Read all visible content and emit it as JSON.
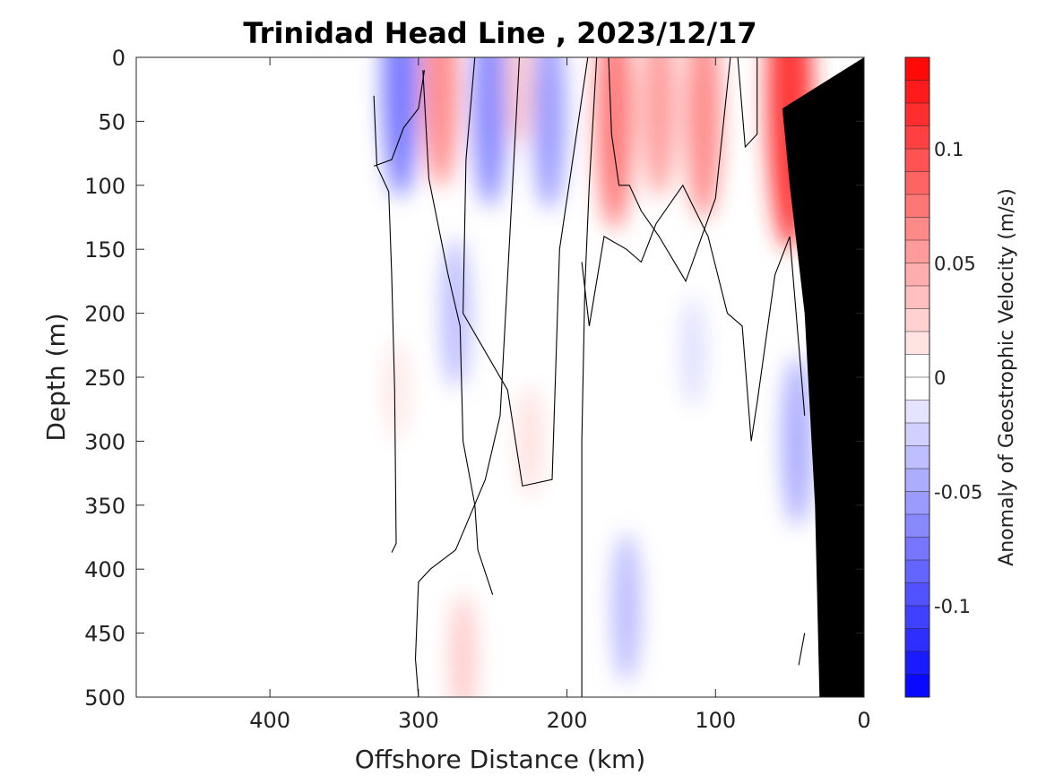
{
  "chart_data": {
    "type": "heatmap",
    "title": "Trinidad Head Line , 2023/12/17",
    "xlabel": "Offshore Distance (km)",
    "ylabel": "Depth (m)",
    "xlim": [
      490,
      0
    ],
    "ylim": [
      0,
      500
    ],
    "x_ticks": [
      400,
      300,
      200,
      100,
      0
    ],
    "x_tick_labels": [
      "400",
      "300",
      "200",
      "100",
      "0"
    ],
    "y_ticks": [
      0,
      50,
      100,
      150,
      200,
      250,
      300,
      350,
      400,
      450,
      500
    ],
    "y_tick_labels": [
      "0",
      "50",
      "100",
      "150",
      "200",
      "250",
      "300",
      "350",
      "400",
      "450",
      "500"
    ],
    "colorbar": {
      "label": "Anomaly of Geostrophic Velocity (m/s)",
      "range": [
        -0.14,
        0.14
      ],
      "step": 0.01,
      "ticks": [
        0.1,
        0.05,
        0,
        -0.05,
        -0.1
      ],
      "tick_labels": [
        "0.1",
        "0.05",
        "0",
        "-0.05",
        "-0.1"
      ],
      "placement": "right"
    },
    "colors": {
      "positive": "#ff0000",
      "negative": "#0000ff",
      "neutral": "#ffffff",
      "bathymetry": "#000000"
    },
    "grid": false,
    "anomalies": [
      {
        "x": 312,
        "depth": 20,
        "value": -0.08
      },
      {
        "x": 285,
        "depth": 20,
        "value": 0.07
      },
      {
        "x": 252,
        "depth": 35,
        "value": -0.07
      },
      {
        "x": 232,
        "depth": 20,
        "value": 0.03
      },
      {
        "x": 212,
        "depth": 45,
        "value": -0.06
      },
      {
        "x": 168,
        "depth": 45,
        "value": 0.08
      },
      {
        "x": 138,
        "depth": 35,
        "value": 0.06
      },
      {
        "x": 108,
        "depth": 45,
        "value": 0.07
      },
      {
        "x": 50,
        "depth": 30,
        "value": 0.12
      },
      {
        "x": 275,
        "depth": 200,
        "value": -0.04
      },
      {
        "x": 270,
        "depth": 470,
        "value": 0.03
      },
      {
        "x": 225,
        "depth": 300,
        "value": 0.02
      },
      {
        "x": 160,
        "depth": 430,
        "value": -0.04
      },
      {
        "x": 45,
        "depth": 300,
        "value": -0.05
      },
      {
        "x": 115,
        "depth": 230,
        "value": -0.02
      },
      {
        "x": 315,
        "depth": 260,
        "value": 0.015
      }
    ],
    "zero_contours": [
      [
        [
          330,
          30
        ],
        [
          328,
          85
        ],
        [
          320,
          105
        ],
        [
          318,
          170
        ],
        [
          316,
          260
        ],
        [
          315,
          380
        ],
        [
          318,
          387
        ]
      ],
      [
        [
          330,
          85
        ],
        [
          318,
          80
        ],
        [
          310,
          55
        ],
        [
          300,
          40
        ],
        [
          296,
          10
        ]
      ],
      [
        [
          297,
          10
        ],
        [
          293,
          95
        ],
        [
          280,
          170
        ],
        [
          272,
          210
        ],
        [
          270,
          300
        ],
        [
          262,
          350
        ],
        [
          260,
          385
        ],
        [
          250,
          420
        ]
      ],
      [
        [
          300,
          500
        ],
        [
          302,
          470
        ],
        [
          300,
          410
        ],
        [
          292,
          400
        ],
        [
          275,
          385
        ],
        [
          255,
          330
        ],
        [
          245,
          280
        ],
        [
          232,
          0
        ]
      ],
      [
        [
          262,
          0
        ],
        [
          268,
          80
        ],
        [
          270,
          200
        ],
        [
          240,
          260
        ],
        [
          230,
          335
        ],
        [
          210,
          330
        ],
        [
          205,
          150
        ],
        [
          186,
          0
        ]
      ],
      [
        [
          190,
          500
        ],
        [
          190,
          300
        ],
        [
          188,
          180
        ],
        [
          185,
          100
        ],
        [
          180,
          0
        ]
      ],
      [
        [
          172,
          0
        ],
        [
          170,
          60
        ],
        [
          165,
          100
        ],
        [
          158,
          100
        ],
        [
          150,
          120
        ],
        [
          138,
          140
        ],
        [
          120,
          175
        ],
        [
          100,
          110
        ],
        [
          90,
          0
        ]
      ],
      [
        [
          72,
          0
        ],
        [
          72,
          60
        ],
        [
          80,
          70
        ],
        [
          85,
          0
        ]
      ],
      [
        [
          40,
          280
        ],
        [
          50,
          140
        ],
        [
          60,
          170
        ],
        [
          72,
          270
        ],
        [
          76,
          300
        ],
        [
          82,
          210
        ],
        [
          92,
          200
        ],
        [
          105,
          140
        ],
        [
          122,
          100
        ],
        [
          140,
          130
        ],
        [
          150,
          160
        ],
        [
          160,
          150
        ],
        [
          175,
          140
        ],
        [
          185,
          210
        ],
        [
          190,
          160
        ]
      ],
      [
        [
          40,
          450
        ],
        [
          44,
          475
        ]
      ]
    ],
    "bathymetry": [
      [
        0,
        0
      ],
      [
        0,
        500
      ],
      [
        30,
        500
      ],
      [
        33,
        350
      ],
      [
        40,
        200
      ],
      [
        50,
        100
      ],
      [
        55,
        40
      ]
    ]
  }
}
